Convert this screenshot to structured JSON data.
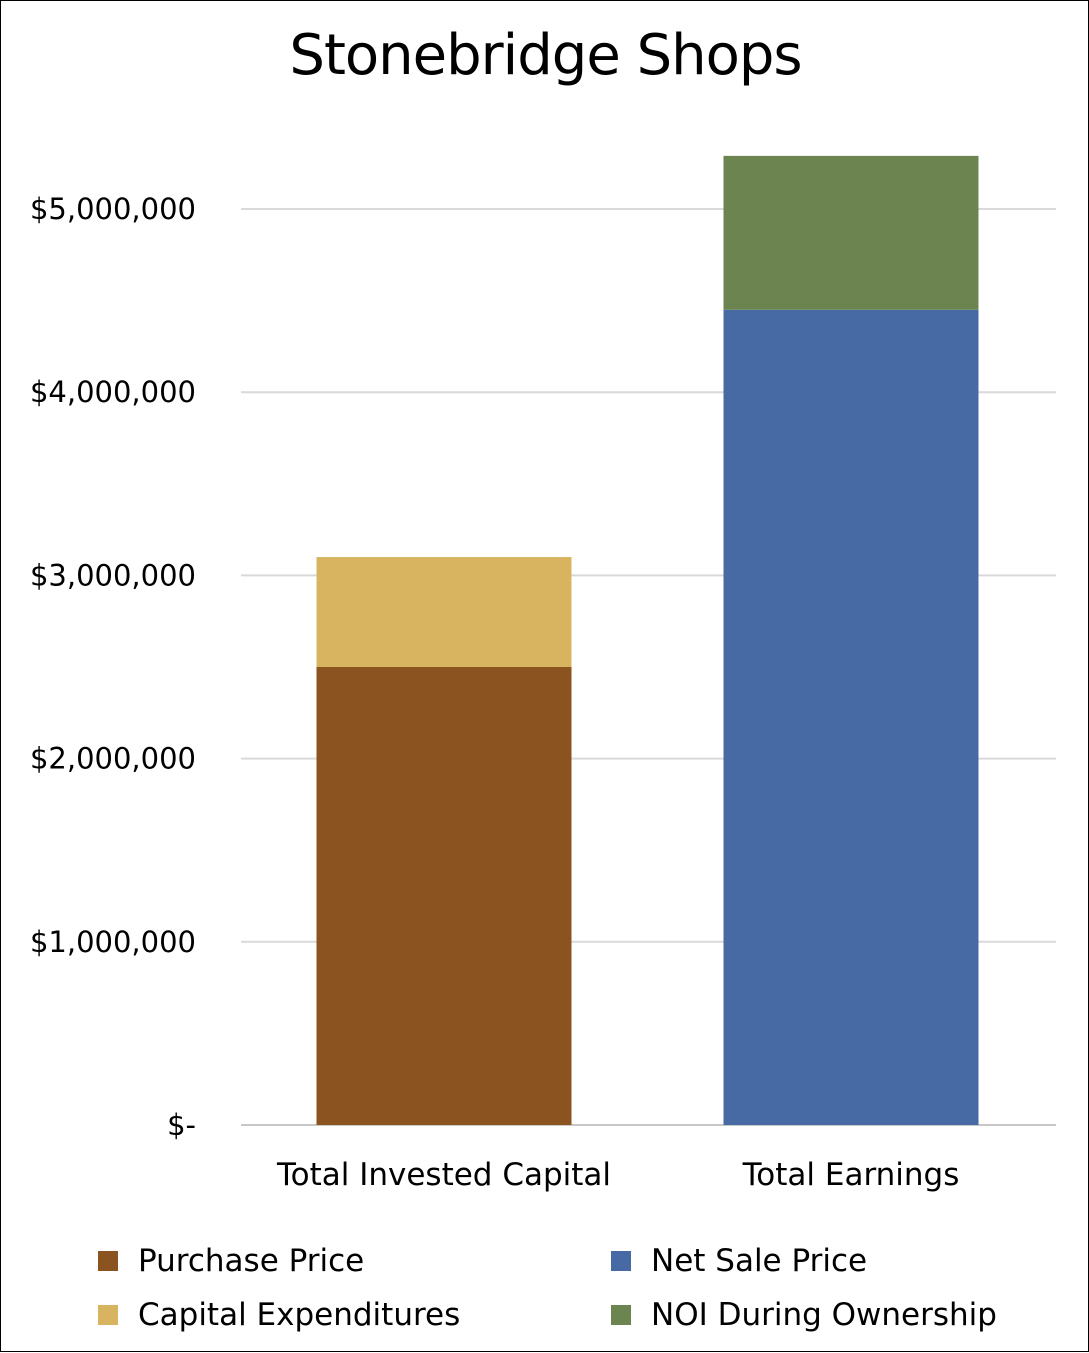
{
  "chart_data": {
    "type": "bar",
    "stacked": true,
    "title": "Stonebridge Shops",
    "categories": [
      "Total Invested Capital",
      "Total Earnings"
    ],
    "series": [
      {
        "name": "Purchase Price",
        "color": "#8b531f",
        "values": [
          2500000,
          0
        ]
      },
      {
        "name": "Capital Expenditures",
        "color": "#d8b461",
        "values": [
          600000,
          0
        ]
      },
      {
        "name": "Net Sale Price",
        "color": "#4769a4",
        "values": [
          0,
          4450000
        ]
      },
      {
        "name": "NOI During Ownership",
        "color": "#6b8450",
        "values": [
          0,
          840000
        ]
      }
    ],
    "ylim": [
      0,
      5000000
    ],
    "yticks": [
      {
        "value": 0,
        "label": "$-"
      },
      {
        "value": 1000000,
        "label": "$1,000,000"
      },
      {
        "value": 2000000,
        "label": "$2,000,000"
      },
      {
        "value": 3000000,
        "label": "$3,000,000"
      },
      {
        "value": 4000000,
        "label": "$4,000,000"
      },
      {
        "value": 5000000,
        "label": "$5,000,000"
      }
    ],
    "grid": true,
    "legend_position": "bottom"
  }
}
